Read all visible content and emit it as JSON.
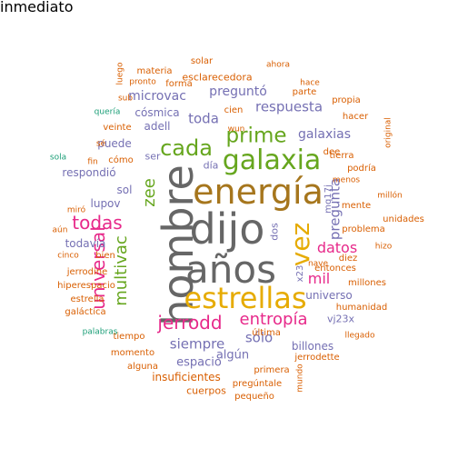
{
  "colors": {
    "dark_gray": "#666666",
    "gold": "#a6761d",
    "mustard": "#e6ab02",
    "green": "#66a61e",
    "magenta": "#e7298a",
    "purple": "#7570b3",
    "orange": "#d95f02",
    "teal": "#1b9e77"
  },
  "words": [
    {
      "text": "dijo",
      "color": "dark_gray",
      "vertical": false
    },
    {
      "text": "hombre",
      "color": "dark_gray",
      "vertical": true
    },
    {
      "text": "años",
      "color": "dark_gray",
      "vertical": false
    },
    {
      "text": "energía",
      "color": "gold",
      "vertical": false
    },
    {
      "text": "estrellas",
      "color": "mustard",
      "vertical": false
    },
    {
      "text": "galaxia",
      "color": "green",
      "vertical": false
    },
    {
      "text": "vez",
      "color": "mustard",
      "vertical": true
    },
    {
      "text": "prime",
      "color": "green",
      "vertical": false
    },
    {
      "text": "cada",
      "color": "green",
      "vertical": false
    },
    {
      "text": "todas",
      "color": "magenta",
      "vertical": false
    },
    {
      "text": "jerrodd",
      "color": "magenta",
      "vertical": false
    },
    {
      "text": "entropía",
      "color": "magenta",
      "vertical": false
    },
    {
      "text": "datos",
      "color": "magenta",
      "vertical": false
    },
    {
      "text": "universal",
      "color": "magenta",
      "vertical": true
    },
    {
      "text": "multivac",
      "color": "green",
      "vertical": true
    },
    {
      "text": "zee",
      "color": "green",
      "vertical": true
    },
    {
      "text": "pregunta",
      "color": "purple",
      "vertical": true
    },
    {
      "text": "mil",
      "color": "magenta",
      "vertical": false
    },
    {
      "text": "siempre",
      "color": "purple",
      "vertical": false
    },
    {
      "text": "sólo",
      "color": "purple",
      "vertical": false
    },
    {
      "text": "respuesta",
      "color": "purple",
      "vertical": false
    },
    {
      "text": "galaxias",
      "color": "purple",
      "vertical": false
    },
    {
      "text": "toda",
      "color": "purple",
      "vertical": false
    },
    {
      "text": "preguntó",
      "color": "purple",
      "vertical": false
    },
    {
      "text": "microvac",
      "color": "purple",
      "vertical": false
    },
    {
      "text": "espacio",
      "color": "purple",
      "vertical": false
    },
    {
      "text": "algún",
      "color": "purple",
      "vertical": false
    },
    {
      "text": "universo",
      "color": "purple",
      "vertical": false
    },
    {
      "text": "billones",
      "color": "purple",
      "vertical": false
    },
    {
      "text": "todavía",
      "color": "purple",
      "vertical": false
    },
    {
      "text": "respondió",
      "color": "purple",
      "vertical": false
    },
    {
      "text": "puede",
      "color": "purple",
      "vertical": false
    },
    {
      "text": "adell",
      "color": "purple",
      "vertical": false
    },
    {
      "text": "cósmica",
      "color": "purple",
      "vertical": false
    },
    {
      "text": "lupov",
      "color": "purple",
      "vertical": false
    },
    {
      "text": "sol",
      "color": "purple",
      "vertical": false
    },
    {
      "text": "dos",
      "color": "purple",
      "vertical": true
    },
    {
      "text": "vj23x",
      "color": "purple",
      "vertical": false
    },
    {
      "text": "día",
      "color": "purple",
      "vertical": false
    },
    {
      "text": "ser",
      "color": "purple",
      "vertical": false
    },
    {
      "text": "insuficientes",
      "color": "orange",
      "vertical": false
    },
    {
      "text": "x23",
      "color": "purple",
      "vertical": true
    },
    {
      "text": "mq17j",
      "color": "purple",
      "vertical": true
    },
    {
      "text": "entonces",
      "color": "orange",
      "vertical": false
    },
    {
      "text": "humanidad",
      "color": "orange",
      "vertical": false
    },
    {
      "text": "millones",
      "color": "orange",
      "vertical": false
    },
    {
      "text": "problema",
      "color": "orange",
      "vertical": false
    },
    {
      "text": "hiperespacio",
      "color": "orange",
      "vertical": false
    },
    {
      "text": "esclarecedora",
      "color": "orange",
      "vertical": false
    },
    {
      "text": "estrella",
      "color": "orange",
      "vertical": false
    },
    {
      "text": "jerrodine",
      "color": "orange",
      "vertical": false
    },
    {
      "text": "cuerpos",
      "color": "orange",
      "vertical": false
    },
    {
      "text": "momento",
      "color": "orange",
      "vertical": false
    },
    {
      "text": "primera",
      "color": "orange",
      "vertical": false
    },
    {
      "text": "forma",
      "color": "orange",
      "vertical": false
    },
    {
      "text": "veinte",
      "color": "orange",
      "vertical": false
    },
    {
      "text": "última",
      "color": "orange",
      "vertical": false
    },
    {
      "text": "tierra",
      "color": "orange",
      "vertical": false
    },
    {
      "text": "podría",
      "color": "orange",
      "vertical": false
    },
    {
      "text": "diez",
      "color": "orange",
      "vertical": false
    },
    {
      "text": "cien",
      "color": "orange",
      "vertical": false
    },
    {
      "text": "tiempo",
      "color": "orange",
      "vertical": false
    },
    {
      "text": "galáctica",
      "color": "orange",
      "vertical": false
    },
    {
      "text": "cómo",
      "color": "orange",
      "vertical": false
    },
    {
      "text": "bien",
      "color": "orange",
      "vertical": false
    },
    {
      "text": "alguna",
      "color": "orange",
      "vertical": false
    },
    {
      "text": "pequeño",
      "color": "orange",
      "vertical": false
    },
    {
      "text": "pregúntale",
      "color": "orange",
      "vertical": false
    },
    {
      "text": "jerrodette",
      "color": "orange",
      "vertical": false
    },
    {
      "text": "unidades",
      "color": "orange",
      "vertical": false
    },
    {
      "text": "millón",
      "color": "orange",
      "vertical": false
    },
    {
      "text": "mente",
      "color": "orange",
      "vertical": false
    },
    {
      "text": "menos",
      "color": "orange",
      "vertical": false
    },
    {
      "text": "hacer",
      "color": "orange",
      "vertical": false
    },
    {
      "text": "propia",
      "color": "orange",
      "vertical": false
    },
    {
      "text": "parte",
      "color": "orange",
      "vertical": false
    },
    {
      "text": "hace",
      "color": "orange",
      "vertical": false
    },
    {
      "text": "ahora",
      "color": "orange",
      "vertical": false
    },
    {
      "text": "solar",
      "color": "orange",
      "vertical": false
    },
    {
      "text": "materia",
      "color": "orange",
      "vertical": false
    },
    {
      "text": "pronto",
      "color": "orange",
      "vertical": false
    },
    {
      "text": "sub",
      "color": "orange",
      "vertical": false
    },
    {
      "text": "wun",
      "color": "orange",
      "vertical": false
    },
    {
      "text": "dee",
      "color": "orange",
      "vertical": false
    },
    {
      "text": "sé",
      "color": "orange",
      "vertical": false
    },
    {
      "text": "fin",
      "color": "orange",
      "vertical": false
    },
    {
      "text": "aún",
      "color": "orange",
      "vertical": false
    },
    {
      "text": "cinco",
      "color": "orange",
      "vertical": false
    },
    {
      "text": "llegado",
      "color": "orange",
      "vertical": false
    },
    {
      "text": "nave",
      "color": "orange",
      "vertical": false
    },
    {
      "text": "hizo",
      "color": "orange",
      "vertical": false
    },
    {
      "text": "miró",
      "color": "orange",
      "vertical": false
    },
    {
      "text": "original",
      "color": "orange",
      "vertical": true
    },
    {
      "text": "mundo",
      "color": "orange",
      "vertical": true
    },
    {
      "text": "luego",
      "color": "orange",
      "vertical": true
    },
    {
      "text": "quería",
      "color": "teal",
      "vertical": false
    },
    {
      "text": "sola",
      "color": "teal",
      "vertical": false
    },
    {
      "text": "palabras",
      "color": "teal",
      "vertical": false
    },
    {
      "text": "inmediato",
      "color": "teal",
      "vertical": false
    }
  ]
}
